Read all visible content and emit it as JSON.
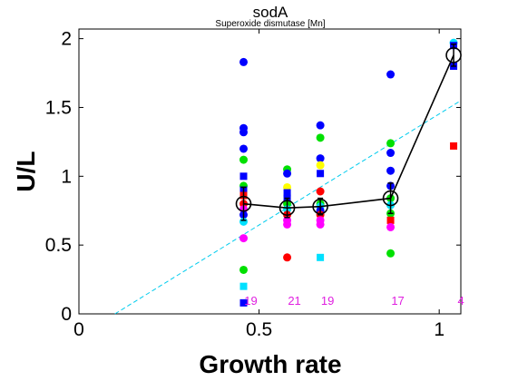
{
  "chart_data": {
    "type": "scatter",
    "title": "sodA",
    "subtitle": "Superoxide dismutase [Mn]",
    "xlabel": "Growth rate",
    "ylabel": "U/L",
    "xlim": [
      0,
      1.06
    ],
    "ylim": [
      0,
      2.07
    ],
    "xticks": [
      0,
      0.5,
      1
    ],
    "xtick_labels": [
      "0",
      "0.5",
      "1"
    ],
    "yticks": [
      0,
      0.5,
      1,
      1.5,
      2
    ],
    "ytick_labels": [
      "0",
      "0.5",
      "1",
      "1.5",
      "2"
    ],
    "grid": false,
    "colors": {
      "blue": "#0000ff",
      "green": "#00e000",
      "red": "#ff0000",
      "magenta": "#ff00ff",
      "cyan": "#00e0ff",
      "yellow": "#ffff00",
      "mean_line": "#000000",
      "fit_line": "#00ccee",
      "count_text": "#e020e0"
    },
    "points": [
      {
        "x": 0.457,
        "y": 1.83,
        "color": "blue",
        "marker": "circle"
      },
      {
        "x": 0.457,
        "y": 1.35,
        "color": "blue",
        "marker": "circle"
      },
      {
        "x": 0.457,
        "y": 1.32,
        "color": "blue",
        "marker": "circle"
      },
      {
        "x": 0.457,
        "y": 1.2,
        "color": "blue",
        "marker": "circle"
      },
      {
        "x": 0.457,
        "y": 1.12,
        "color": "green",
        "marker": "circle"
      },
      {
        "x": 0.457,
        "y": 1.0,
        "color": "blue",
        "marker": "square"
      },
      {
        "x": 0.457,
        "y": 0.93,
        "color": "green",
        "marker": "circle"
      },
      {
        "x": 0.457,
        "y": 0.9,
        "color": "blue",
        "marker": "square"
      },
      {
        "x": 0.457,
        "y": 0.86,
        "color": "red",
        "marker": "square"
      },
      {
        "x": 0.457,
        "y": 0.8,
        "color": "red",
        "marker": "circle"
      },
      {
        "x": 0.457,
        "y": 0.76,
        "color": "magenta",
        "marker": "circle"
      },
      {
        "x": 0.457,
        "y": 0.72,
        "color": "blue",
        "marker": "circle"
      },
      {
        "x": 0.457,
        "y": 0.67,
        "color": "cyan",
        "marker": "circle"
      },
      {
        "x": 0.457,
        "y": 0.55,
        "color": "magenta",
        "marker": "circle"
      },
      {
        "x": 0.457,
        "y": 0.32,
        "color": "green",
        "marker": "circle"
      },
      {
        "x": 0.457,
        "y": 0.2,
        "color": "cyan",
        "marker": "square"
      },
      {
        "x": 0.457,
        "y": 0.08,
        "color": "blue",
        "marker": "square"
      },
      {
        "x": 0.578,
        "y": 1.05,
        "color": "green",
        "marker": "circle"
      },
      {
        "x": 0.578,
        "y": 1.02,
        "color": "blue",
        "marker": "circle"
      },
      {
        "x": 0.578,
        "y": 0.92,
        "color": "yellow",
        "marker": "circle"
      },
      {
        "x": 0.578,
        "y": 0.88,
        "color": "blue",
        "marker": "square"
      },
      {
        "x": 0.578,
        "y": 0.84,
        "color": "blue",
        "marker": "square"
      },
      {
        "x": 0.578,
        "y": 0.8,
        "color": "green",
        "marker": "circle"
      },
      {
        "x": 0.578,
        "y": 0.76,
        "color": "cyan",
        "marker": "circle"
      },
      {
        "x": 0.578,
        "y": 0.72,
        "color": "red",
        "marker": "circle"
      },
      {
        "x": 0.578,
        "y": 0.68,
        "color": "magenta",
        "marker": "circle"
      },
      {
        "x": 0.578,
        "y": 0.65,
        "color": "magenta",
        "marker": "circle"
      },
      {
        "x": 0.578,
        "y": 0.41,
        "color": "red",
        "marker": "circle"
      },
      {
        "x": 0.67,
        "y": 1.37,
        "color": "blue",
        "marker": "circle"
      },
      {
        "x": 0.67,
        "y": 1.28,
        "color": "green",
        "marker": "circle"
      },
      {
        "x": 0.67,
        "y": 1.13,
        "color": "blue",
        "marker": "circle"
      },
      {
        "x": 0.67,
        "y": 1.08,
        "color": "yellow",
        "marker": "circle"
      },
      {
        "x": 0.67,
        "y": 1.02,
        "color": "blue",
        "marker": "square"
      },
      {
        "x": 0.67,
        "y": 0.89,
        "color": "red",
        "marker": "circle"
      },
      {
        "x": 0.67,
        "y": 0.8,
        "color": "green",
        "marker": "circle"
      },
      {
        "x": 0.67,
        "y": 0.78,
        "color": "cyan",
        "marker": "circle"
      },
      {
        "x": 0.67,
        "y": 0.75,
        "color": "blue",
        "marker": "circle"
      },
      {
        "x": 0.67,
        "y": 0.72,
        "color": "red",
        "marker": "circle"
      },
      {
        "x": 0.67,
        "y": 0.68,
        "color": "magenta",
        "marker": "circle"
      },
      {
        "x": 0.67,
        "y": 0.65,
        "color": "magenta",
        "marker": "circle"
      },
      {
        "x": 0.67,
        "y": 0.41,
        "color": "cyan",
        "marker": "square"
      },
      {
        "x": 0.865,
        "y": 1.74,
        "color": "blue",
        "marker": "circle"
      },
      {
        "x": 0.865,
        "y": 1.24,
        "color": "green",
        "marker": "circle"
      },
      {
        "x": 0.865,
        "y": 1.17,
        "color": "blue",
        "marker": "circle"
      },
      {
        "x": 0.865,
        "y": 1.04,
        "color": "blue",
        "marker": "circle"
      },
      {
        "x": 0.865,
        "y": 0.93,
        "color": "blue",
        "marker": "circle"
      },
      {
        "x": 0.865,
        "y": 0.84,
        "color": "green",
        "marker": "circle"
      },
      {
        "x": 0.865,
        "y": 0.79,
        "color": "cyan",
        "marker": "circle"
      },
      {
        "x": 0.865,
        "y": 0.73,
        "color": "green",
        "marker": "circle"
      },
      {
        "x": 0.865,
        "y": 0.68,
        "color": "red",
        "marker": "square"
      },
      {
        "x": 0.865,
        "y": 0.63,
        "color": "magenta",
        "marker": "circle"
      },
      {
        "x": 0.865,
        "y": 0.44,
        "color": "green",
        "marker": "circle"
      },
      {
        "x": 1.04,
        "y": 1.97,
        "color": "cyan",
        "marker": "circle"
      },
      {
        "x": 1.04,
        "y": 1.95,
        "color": "blue",
        "marker": "square"
      },
      {
        "x": 1.04,
        "y": 1.8,
        "color": "blue",
        "marker": "square"
      },
      {
        "x": 1.04,
        "y": 1.22,
        "color": "red",
        "marker": "square"
      }
    ],
    "mean_series": {
      "x": [
        0.457,
        0.578,
        0.67,
        0.865,
        1.04
      ],
      "y": [
        0.8,
        0.77,
        0.78,
        0.84,
        1.88
      ],
      "err": [
        0.12,
        0.07,
        0.06,
        0.11,
        0.08
      ]
    },
    "fit_line": {
      "x": [
        0.1,
        1.06
      ],
      "y": [
        0.0,
        1.55
      ]
    },
    "counts": [
      {
        "x": 0.457,
        "label": "19"
      },
      {
        "x": 0.578,
        "label": "21"
      },
      {
        "x": 0.67,
        "label": "19"
      },
      {
        "x": 0.865,
        "label": "17"
      },
      {
        "x": 1.04,
        "label": "4"
      }
    ],
    "counts_y": 0.1
  }
}
